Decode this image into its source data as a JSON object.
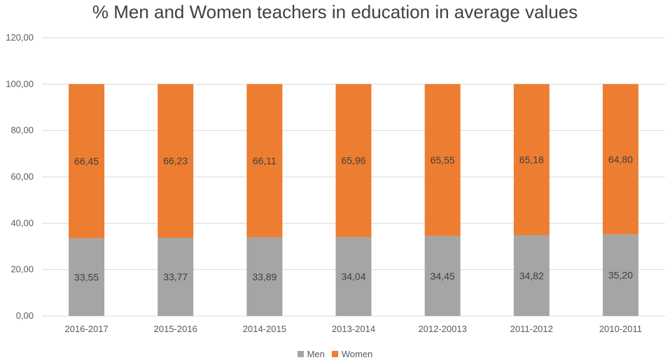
{
  "chart_data": {
    "type": "bar",
    "stacked": true,
    "title": "% Men and Women teachers in education in average values",
    "categories": [
      "2016-2017",
      "2015-2016",
      "2014-2015",
      "2013-2014",
      "2012-20013",
      "2011-2012",
      "2010-2011"
    ],
    "series": [
      {
        "name": "Men",
        "color": "#a5a5a5",
        "values": [
          33.55,
          33.77,
          33.89,
          34.04,
          34.45,
          34.82,
          35.2
        ],
        "labels": [
          "33,55",
          "33,77",
          "33,89",
          "34,04",
          "34,45",
          "34,82",
          "35,20"
        ]
      },
      {
        "name": "Women",
        "color": "#ed7d31",
        "values": [
          66.45,
          66.23,
          66.11,
          65.96,
          65.55,
          65.18,
          64.8
        ],
        "labels": [
          "66,45",
          "66,23",
          "66,11",
          "65,96",
          "65,55",
          "65,18",
          "64,80"
        ]
      }
    ],
    "ylim": [
      0,
      120
    ],
    "yticks": [
      "0,00",
      "20,00",
      "40,00",
      "60,00",
      "80,00",
      "100,00",
      "120,00"
    ],
    "grid": true,
    "legend_position": "bottom",
    "gridline_color": "#d9d9d9"
  }
}
